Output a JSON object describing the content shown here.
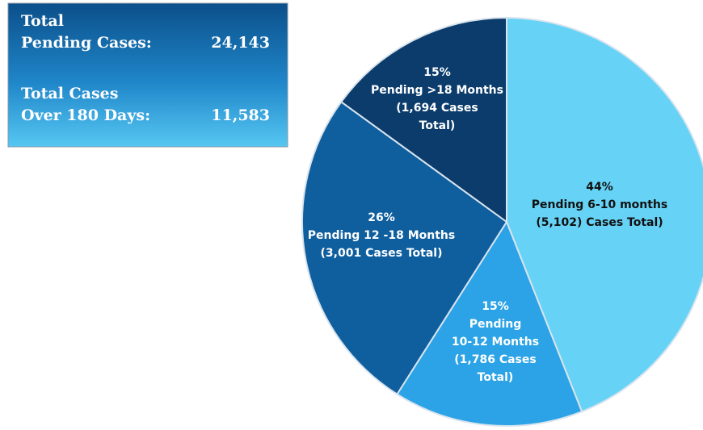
{
  "summary": [
    {
      "label": [
        "Total",
        "Pending Cases:"
      ],
      "value": "24,143"
    },
    {
      "label": [
        "Total Cases",
        "Over 180 Days:"
      ],
      "value": "11,583"
    }
  ],
  "chart_data": {
    "type": "pie",
    "categories": [
      [
        "Pending 6-10 months",
        "(5,102) Cases Total)"
      ],
      [
        "Pending",
        "10-12 Months",
        "(1,786 Cases",
        "Total)"
      ],
      [
        "Pending 12 -18 Months",
        "(3,001 Cases Total)"
      ],
      [
        "Pending >18 Months",
        "(1,694 Cases",
        "Total)"
      ]
    ],
    "values": [
      44,
      15,
      26,
      15
    ],
    "value_labels": [
      "44%",
      "15%",
      "26%",
      "15%"
    ],
    "colors": [
      "#66d3f6",
      "#2ba3e6",
      "#0f5e9e",
      "#0b3c6b"
    ],
    "label_colors": [
      "#111111",
      "#ffffff",
      "#ffffff",
      "#ffffff"
    ]
  }
}
